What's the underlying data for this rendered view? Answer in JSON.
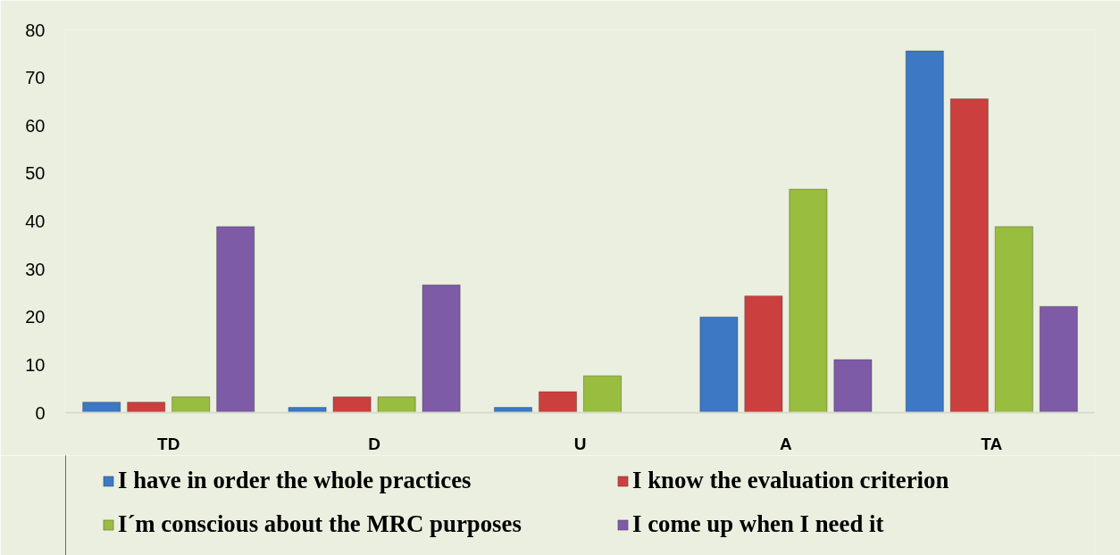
{
  "chart_data": {
    "type": "bar",
    "categories": [
      "TD",
      "D",
      "U",
      "A",
      "TA"
    ],
    "series": [
      {
        "name": "I have in order the whole practices",
        "color": "#3c78c3",
        "values": [
          2.2,
          1.1,
          1.1,
          20.0,
          75.6
        ]
      },
      {
        "name": "I know the evaluation criterion",
        "color": "#cc3f3f",
        "values": [
          2.2,
          3.3,
          4.4,
          24.4,
          65.6
        ]
      },
      {
        "name": "I´m conscious about the MRC purposes",
        "color": "#98bd3f",
        "values": [
          3.3,
          3.3,
          7.7,
          46.7,
          38.9
        ]
      },
      {
        "name": "I come up when I need it",
        "color": "#7d5ba6",
        "values": [
          38.9,
          26.7,
          null,
          11.1,
          22.2
        ]
      }
    ],
    "ylim": [
      0,
      80
    ],
    "yticks": [
      0,
      10,
      20,
      30,
      40,
      50,
      60,
      70,
      80
    ],
    "legend": "bottom"
  }
}
